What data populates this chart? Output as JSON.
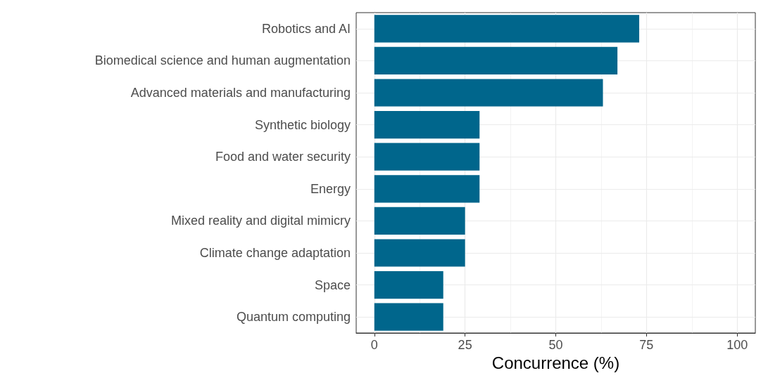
{
  "chart_data": {
    "type": "bar",
    "orientation": "horizontal",
    "xlabel": "Concurrence (%)",
    "categories": [
      "Robotics and AI",
      "Biomedical science and human augmentation",
      "Advanced materials and manufacturing",
      "Synthetic biology",
      "Food and water security",
      "Energy",
      "Mixed reality and digital mimicry",
      "Climate change adaptation",
      "Space",
      "Quantum computing"
    ],
    "values": [
      73,
      67,
      63,
      29,
      29,
      29,
      25,
      25,
      19,
      19
    ],
    "color": "#00668c",
    "xlim": [
      -5,
      105
    ],
    "xticks": [
      0,
      25,
      50,
      75,
      100
    ],
    "grid": true
  }
}
